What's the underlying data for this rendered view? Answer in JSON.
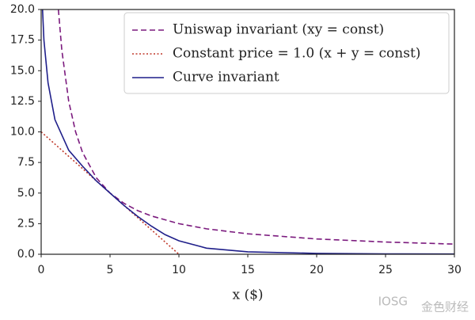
{
  "chart_data": {
    "type": "line",
    "xlabel": "x ($)",
    "xlim": [
      0,
      30
    ],
    "xticks": [
      0,
      5,
      10,
      15,
      20,
      25,
      30
    ],
    "ylim": [
      0,
      20
    ],
    "yticks": [
      {
        "value": 0,
        "label": "0.0"
      },
      {
        "value": 2.5,
        "label": "2.5"
      },
      {
        "value": 5,
        "label": "5.0"
      },
      {
        "value": 7.5,
        "label": "7.5"
      },
      {
        "value": 10,
        "label": "10.0"
      },
      {
        "value": 12.5,
        "label": "12.5"
      },
      {
        "value": 15,
        "label": "15.0"
      },
      {
        "value": 17.5,
        "label": "17.5"
      },
      {
        "value": 20,
        "label": "20.0"
      }
    ],
    "legend": "upper right",
    "series": [
      {
        "name": "Uniswap invariant (xy = const)",
        "color": "#7b1a7e",
        "style": "dashed",
        "x": [
          1.25,
          1.5,
          2,
          2.5,
          3,
          4,
          5,
          6,
          7,
          8,
          10,
          12,
          15,
          20,
          25,
          30
        ],
        "values": [
          20,
          16.67,
          12.5,
          10,
          8.33,
          6.25,
          5,
          4.17,
          3.57,
          3.13,
          2.5,
          2.08,
          1.67,
          1.25,
          1,
          0.83
        ]
      },
      {
        "name": "Constant price = 1.0 (x + y = const)",
        "color": "#c0392b",
        "style": "dotted",
        "x": [
          0,
          10
        ],
        "values": [
          10,
          0
        ]
      },
      {
        "name": "Curve invariant",
        "color": "#1f1f8a",
        "style": "solid",
        "x": [
          0.1,
          0.2,
          0.5,
          1,
          2,
          3,
          4,
          5,
          6,
          7,
          8,
          9,
          10,
          12,
          15,
          20,
          25,
          30
        ],
        "values": [
          20,
          17.5,
          14,
          11,
          8.5,
          7.2,
          6,
          5,
          4,
          3.1,
          2.3,
          1.6,
          1.1,
          0.5,
          0.2,
          0.07,
          0.03,
          0.02
        ]
      }
    ]
  },
  "watermark": {
    "brand": "IOSG",
    "site": "金色财经"
  }
}
